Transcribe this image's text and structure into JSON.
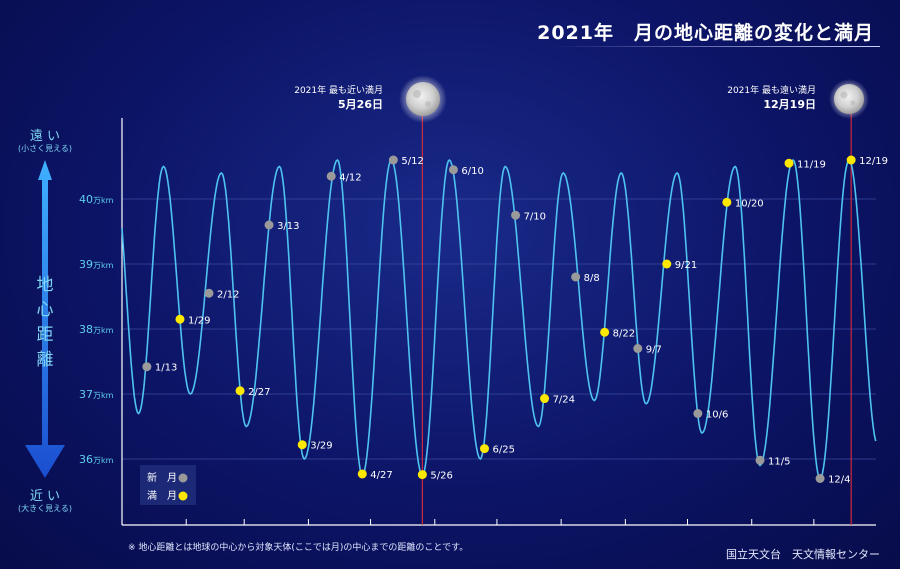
{
  "title": "2021年　月の地心距離の変化と満月",
  "note": "※ 地心距離とは地球の中心から対象天体(ここでは月)の中心までの距離のことです。",
  "credit": "国立天文台　天文情報センター",
  "axis": {
    "far_label": "遠 い",
    "far_sub": "(小さく見える)",
    "near_label": "近 い",
    "near_sub": "(大きく見える)",
    "vertical_label": [
      "地",
      "心",
      "距",
      "離"
    ],
    "y_unit": "万km",
    "y_ticks": [
      36,
      37,
      38,
      39,
      40
    ]
  },
  "legend": {
    "new_moon": "新　月",
    "full_moon": "満　月"
  },
  "annotations": [
    {
      "date": "5/26",
      "line1": "2021年 最も近い満月",
      "line2": "5月26日"
    },
    {
      "date": "12/19",
      "line1": "2021年 最も遠い満月",
      "line2": "12月19日"
    }
  ],
  "colors": {
    "curve": "#4fc3f0",
    "new_moon": "#9a9a9a",
    "full_moon": "#ffe800",
    "marker_line": "#e02a3a",
    "grid": "#3a4aa0"
  },
  "chart_data": {
    "type": "line",
    "title": "2021年　月の地心距離の変化と満月",
    "ylabel": "地心距離",
    "y_unit": "万km",
    "ylim": [
      35.5,
      41.2
    ],
    "x_domain": [
      "2021-01-01",
      "2021-12-31"
    ],
    "extremes": [
      [
        "2020-12-28",
        40.5
      ],
      [
        "2021-01-09",
        36.7
      ],
      [
        "2021-01-21",
        40.5
      ],
      [
        "2021-02-03",
        37.0
      ],
      [
        "2021-02-18",
        40.4
      ],
      [
        "2021-03-02",
        36.5
      ],
      [
        "2021-03-18",
        40.5
      ],
      [
        "2021-03-30",
        36.0
      ],
      [
        "2021-04-15",
        40.6
      ],
      [
        "2021-04-27",
        35.75
      ],
      [
        "2021-05-11",
        40.6
      ],
      [
        "2021-05-26",
        35.75
      ],
      [
        "2021-06-08",
        40.6
      ],
      [
        "2021-06-23",
        36.0
      ],
      [
        "2021-07-05",
        40.5
      ],
      [
        "2021-07-21",
        36.5
      ],
      [
        "2021-08-02",
        40.4
      ],
      [
        "2021-08-17",
        36.9
      ],
      [
        "2021-08-30",
        40.4
      ],
      [
        "2021-09-11",
        36.85
      ],
      [
        "2021-09-26",
        40.4
      ],
      [
        "2021-10-08",
        36.4
      ],
      [
        "2021-10-24",
        40.5
      ],
      [
        "2021-11-05",
        35.9
      ],
      [
        "2021-11-21",
        40.6
      ],
      [
        "2021-12-04",
        35.7
      ],
      [
        "2021-12-18",
        40.6
      ],
      [
        "2022-01-01",
        36.2
      ]
    ],
    "new_moons": [
      {
        "label": "1/13",
        "date": "2021-01-13",
        "value": 37.42
      },
      {
        "label": "2/12",
        "date": "2021-02-12",
        "value": 38.55
      },
      {
        "label": "3/13",
        "date": "2021-03-13",
        "value": 39.6
      },
      {
        "label": "4/12",
        "date": "2021-04-12",
        "value": 40.35
      },
      {
        "label": "5/12",
        "date": "2021-05-12",
        "value": 40.6
      },
      {
        "label": "6/10",
        "date": "2021-06-10",
        "value": 40.45
      },
      {
        "label": "7/10",
        "date": "2021-07-10",
        "value": 39.75
      },
      {
        "label": "8/8",
        "date": "2021-08-08",
        "value": 38.8
      },
      {
        "label": "9/7",
        "date": "2021-09-07",
        "value": 37.7
      },
      {
        "label": "10/6",
        "date": "2021-10-06",
        "value": 36.7
      },
      {
        "label": "11/5",
        "date": "2021-11-05",
        "value": 35.98
      },
      {
        "label": "12/4",
        "date": "2021-12-04",
        "value": 35.7
      }
    ],
    "full_moons": [
      {
        "label": "1/29",
        "date": "2021-01-29",
        "value": 38.15
      },
      {
        "label": "2/27",
        "date": "2021-02-27",
        "value": 37.05
      },
      {
        "label": "3/29",
        "date": "2021-03-29",
        "value": 36.22
      },
      {
        "label": "4/27",
        "date": "2021-04-27",
        "value": 35.77
      },
      {
        "label": "5/26",
        "date": "2021-05-26",
        "value": 35.76
      },
      {
        "label": "6/25",
        "date": "2021-06-25",
        "value": 36.16
      },
      {
        "label": "7/24",
        "date": "2021-07-24",
        "value": 36.93
      },
      {
        "label": "8/22",
        "date": "2021-08-22",
        "value": 37.95
      },
      {
        "label": "9/21",
        "date": "2021-09-21",
        "value": 39.0
      },
      {
        "label": "10/20",
        "date": "2021-10-20",
        "value": 39.95
      },
      {
        "label": "11/19",
        "date": "2021-11-19",
        "value": 40.55
      },
      {
        "label": "12/19",
        "date": "2021-12-19",
        "value": 40.6
      }
    ]
  }
}
